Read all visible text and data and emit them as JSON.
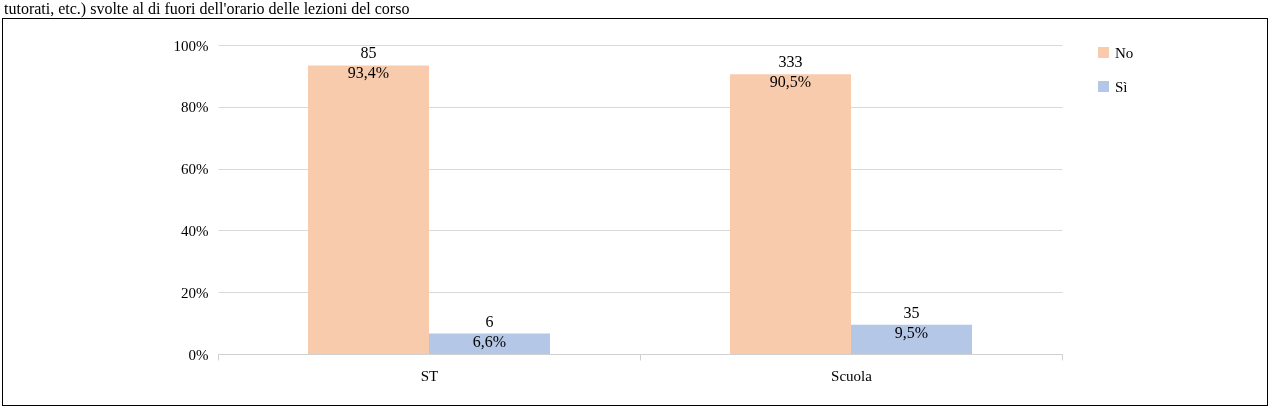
{
  "chart_data": {
    "type": "bar",
    "title": "tutorati, etc.) svolte al di fuori dell'orario delle lezioni del corso",
    "categories": [
      "ST",
      "Scuola"
    ],
    "series": [
      {
        "name": "No",
        "color": "#f8cbad",
        "values": [
          93.4,
          90.5
        ],
        "value_labels": [
          "85\n93,4%",
          "333\n90,5%"
        ]
      },
      {
        "name": "Sì",
        "color": "#b4c7e7",
        "values": [
          6.6,
          9.5
        ],
        "value_labels": [
          "6\n6,6%",
          "35\n9,5%"
        ]
      }
    ],
    "ylim": [
      0,
      100
    ],
    "yticks": [
      {
        "value": 0,
        "label": "0%"
      },
      {
        "value": 20,
        "label": "20%"
      },
      {
        "value": 40,
        "label": "40%"
      },
      {
        "value": 60,
        "label": "60%"
      },
      {
        "value": 80,
        "label": "80%"
      },
      {
        "value": 100,
        "label": "100%"
      }
    ],
    "grid": "y",
    "legend": "right"
  }
}
